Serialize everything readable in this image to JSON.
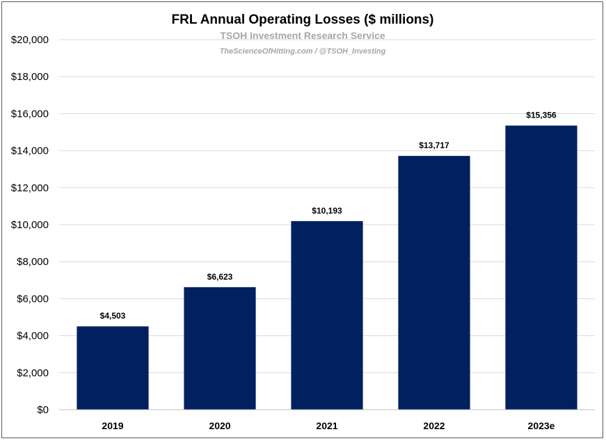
{
  "chart_data": {
    "type": "bar",
    "title": "FRL Annual Operating Losses ($ millions)",
    "subtitle": "TSOH Investment Research Service",
    "credit": "TheScienceOfHitting.com / @TSOH_Investing",
    "categories": [
      "2019",
      "2020",
      "2021",
      "2022",
      "2023e"
    ],
    "values": [
      4503,
      6623,
      10193,
      13717,
      15356
    ],
    "data_labels": [
      "$4,503",
      "$6,623",
      "$10,193",
      "$13,717",
      "$15,356"
    ],
    "yticks": [
      0,
      2000,
      4000,
      6000,
      8000,
      10000,
      12000,
      14000,
      16000,
      18000,
      20000
    ],
    "ytick_labels": [
      "$0",
      "$2,000",
      "$4,000",
      "$6,000",
      "$8,000",
      "$10,000",
      "$12,000",
      "$14,000",
      "$16,000",
      "$18,000",
      "$20,000"
    ],
    "ylim": [
      0,
      20000
    ],
    "grid": true,
    "legend": "none",
    "colors": {
      "bar": "#002060",
      "grid": "#d9d9d9",
      "axis": "#bfbfbf"
    }
  }
}
